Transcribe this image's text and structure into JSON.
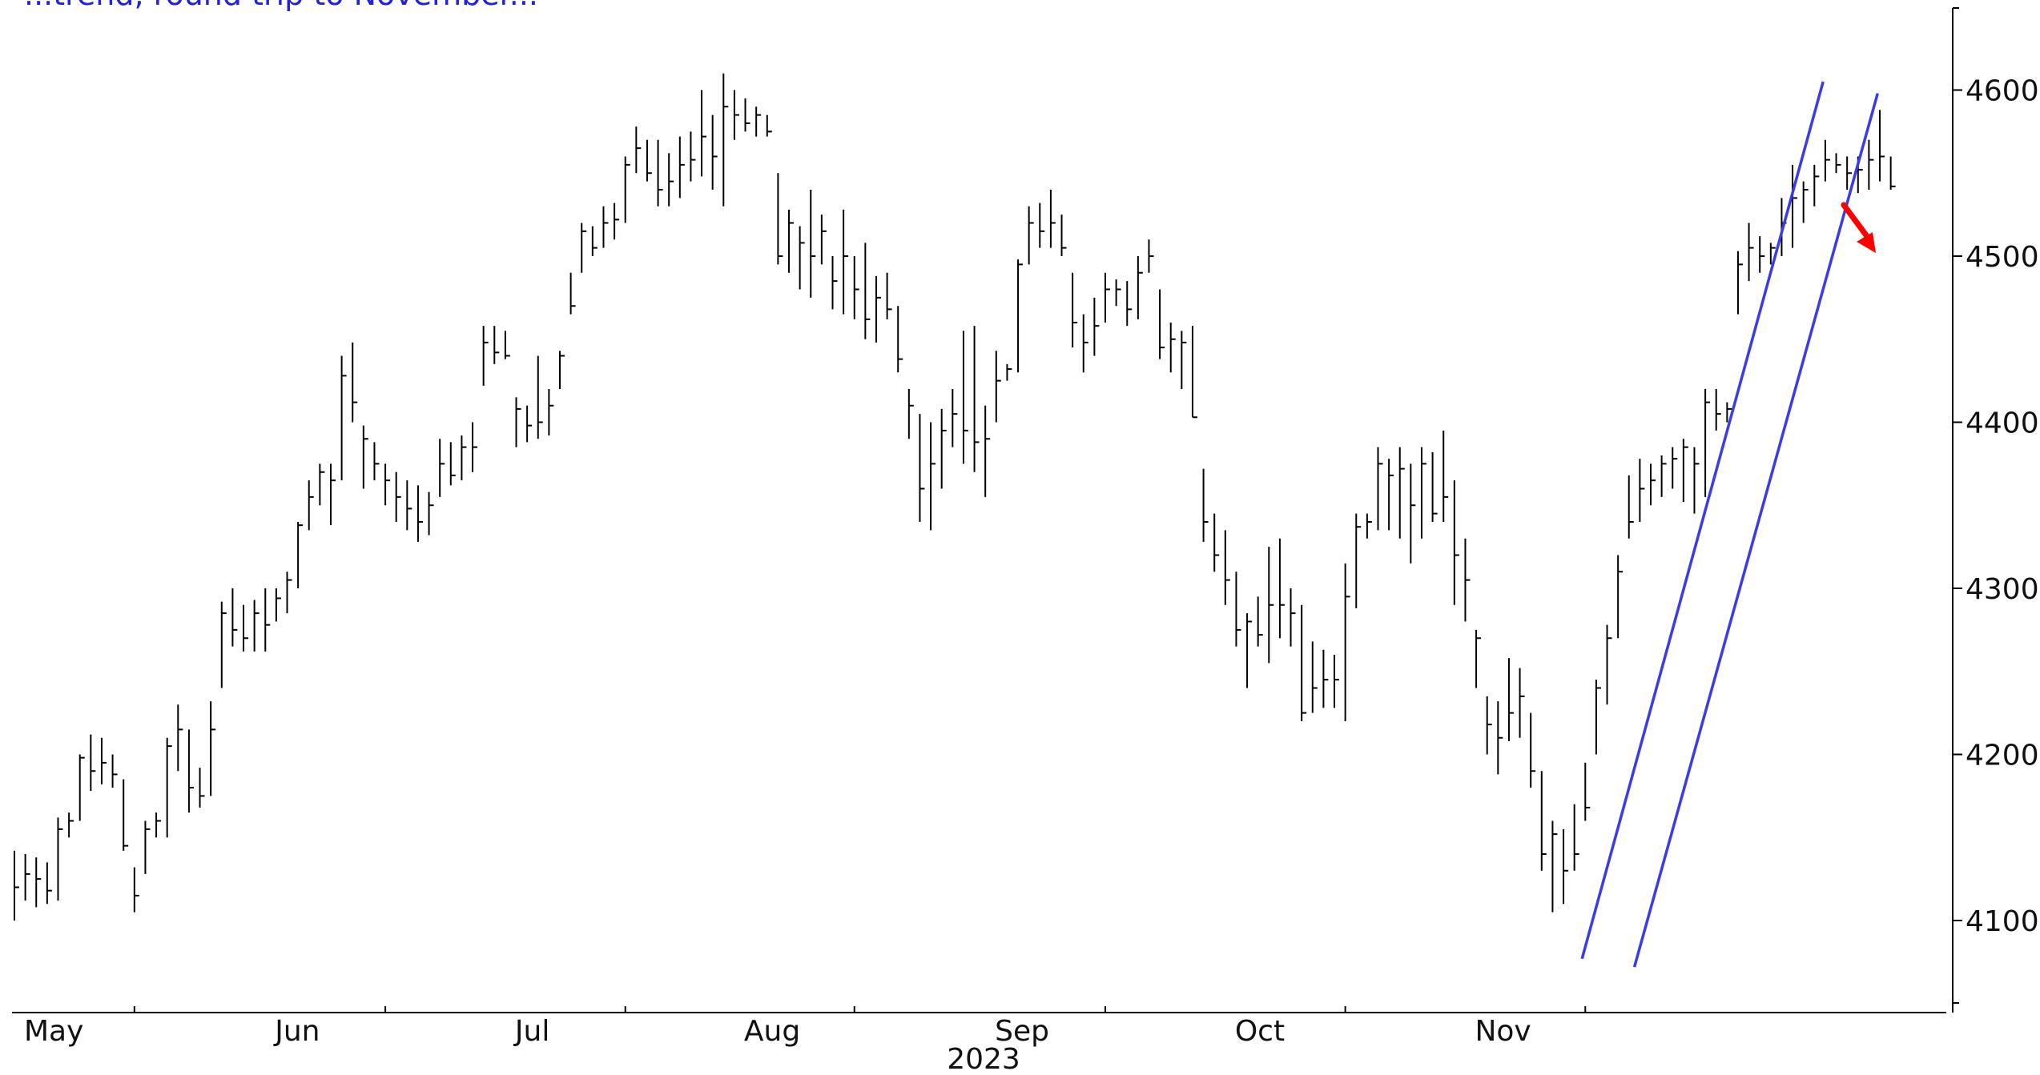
{
  "title_fragment": "...trend, round trip to November...",
  "colors": {
    "bars": "#000000",
    "channel": "#3b3bea",
    "arrow": "#ff0000",
    "title": "#2222dd"
  },
  "chart_data": {
    "type": "ohlc",
    "title": "",
    "xlabel": "2023",
    "ylabel": "",
    "ylim": [
      4050,
      4650
    ],
    "yticks": [
      4100,
      4200,
      4300,
      4400,
      4500,
      4600
    ],
    "y_axis_side": "right",
    "x_axis_months": [
      "May",
      "Jun",
      "Jul",
      "Aug",
      "Sep",
      "Oct",
      "Nov"
    ],
    "month_start_index": [
      0,
      23,
      45,
      66,
      89,
      111,
      133
    ],
    "grid": false,
    "bars": [
      [
        4142,
        4100,
        4120
      ],
      [
        4140,
        4112,
        4128
      ],
      [
        4138,
        4108,
        4125
      ],
      [
        4135,
        4110,
        4118
      ],
      [
        4162,
        4112,
        4155
      ],
      [
        4165,
        4150,
        4160
      ],
      [
        4200,
        4160,
        4198
      ],
      [
        4212,
        4178,
        4190
      ],
      [
        4210,
        4182,
        4195
      ],
      [
        4200,
        4180,
        4188
      ],
      [
        4185,
        4142,
        4145
      ],
      [
        4132,
        4105,
        4115
      ],
      [
        4160,
        4128,
        4155
      ],
      [
        4165,
        4150,
        4160
      ],
      [
        4210,
        4150,
        4205
      ],
      [
        4230,
        4190,
        4215
      ],
      [
        4215,
        4165,
        4180
      ],
      [
        4192,
        4168,
        4175
      ],
      [
        4232,
        4175,
        4215
      ],
      [
        4292,
        4240,
        4285
      ],
      [
        4300,
        4265,
        4275
      ],
      [
        4290,
        4262,
        4270
      ],
      [
        4293,
        4262,
        4285
      ],
      [
        4300,
        4262,
        4278
      ],
      [
        4300,
        4280,
        4294
      ],
      [
        4310,
        4285,
        4305
      ],
      [
        4340,
        4300,
        4338
      ],
      [
        4365,
        4335,
        4355
      ],
      [
        4375,
        4350,
        4370
      ],
      [
        4375,
        4338,
        4365
      ],
      [
        4440,
        4365,
        4428
      ],
      [
        4448,
        4400,
        4412
      ],
      [
        4398,
        4360,
        4390
      ],
      [
        4388,
        4365,
        4375
      ],
      [
        4375,
        4350,
        4365
      ],
      [
        4370,
        4340,
        4355
      ],
      [
        4365,
        4335,
        4348
      ],
      [
        4362,
        4328,
        4340
      ],
      [
        4358,
        4332,
        4350
      ],
      [
        4390,
        4355,
        4375
      ],
      [
        4388,
        4362,
        4368
      ],
      [
        4392,
        4365,
        4385
      ],
      [
        4400,
        4370,
        4385
      ],
      [
        4458,
        4422,
        4448
      ],
      [
        4458,
        4435,
        4442
      ],
      [
        4455,
        4438,
        4440
      ],
      [
        4415,
        4385,
        4408
      ],
      [
        4410,
        4388,
        4398
      ],
      [
        4440,
        4390,
        4400
      ],
      [
        4420,
        4392,
        4410
      ],
      [
        4443,
        4420,
        4440
      ],
      [
        4490,
        4465,
        4470
      ],
      [
        4520,
        4490,
        4515
      ],
      [
        4518,
        4500,
        4505
      ],
      [
        4530,
        4505,
        4520
      ],
      [
        4532,
        4510,
        4522
      ],
      [
        4560,
        4520,
        4555
      ],
      [
        4578,
        4550,
        4565
      ],
      [
        4570,
        4545,
        4550
      ],
      [
        4570,
        4530,
        4540
      ],
      [
        4562,
        4530,
        4545
      ],
      [
        4572,
        4535,
        4555
      ],
      [
        4575,
        4545,
        4558
      ],
      [
        4600,
        4548,
        4572
      ],
      [
        4585,
        4540,
        4560
      ],
      [
        4610,
        4530,
        4590
      ],
      [
        4600,
        4570,
        4585
      ],
      [
        4595,
        4575,
        4580
      ],
      [
        4590,
        4572,
        4585
      ],
      [
        4585,
        4572,
        4575
      ],
      [
        4550,
        4495,
        4500
      ],
      [
        4528,
        4490,
        4520
      ],
      [
        4518,
        4480,
        4508
      ],
      [
        4540,
        4475,
        4500
      ],
      [
        4525,
        4495,
        4515
      ],
      [
        4500,
        4468,
        4485
      ],
      [
        4528,
        4465,
        4500
      ],
      [
        4500,
        4462,
        4480
      ],
      [
        4508,
        4450,
        4462
      ],
      [
        4488,
        4448,
        4475
      ],
      [
        4490,
        4462,
        4468
      ],
      [
        4470,
        4430,
        4438
      ],
      [
        4420,
        4390,
        4410
      ],
      [
        4405,
        4340,
        4360
      ],
      [
        4400,
        4335,
        4375
      ],
      [
        4408,
        4360,
        4395
      ],
      [
        4420,
        4385,
        4405
      ],
      [
        4455,
        4375,
        4395
      ],
      [
        4458,
        4370,
        4388
      ],
      [
        4410,
        4355,
        4390
      ],
      [
        4443,
        4400,
        4425
      ],
      [
        4435,
        4425,
        4432
      ],
      [
        4498,
        4430,
        4495
      ],
      [
        4530,
        4495,
        4520
      ],
      [
        4532,
        4505,
        4515
      ],
      [
        4540,
        4505,
        4520
      ],
      [
        4525,
        4500,
        4505
      ],
      [
        4490,
        4445,
        4460
      ],
      [
        4465,
        4430,
        4448
      ],
      [
        4475,
        4440,
        4458
      ],
      [
        4490,
        4460,
        4480
      ],
      [
        4486,
        4470,
        4480
      ],
      [
        4485,
        4458,
        4468
      ],
      [
        4500,
        4462,
        4490
      ],
      [
        4510,
        4490,
        4500
      ],
      [
        4480,
        4438,
        4445
      ],
      [
        4460,
        4430,
        4450
      ],
      [
        4455,
        4420,
        4448
      ],
      [
        4458,
        4403,
        4403
      ],
      [
        4372,
        4328,
        4340
      ],
      [
        4345,
        4310,
        4320
      ],
      [
        4335,
        4290,
        4305
      ],
      [
        4310,
        4265,
        4275
      ],
      [
        4285,
        4240,
        4280
      ],
      [
        4295,
        4265,
        4272
      ],
      [
        4325,
        4255,
        4290
      ],
      [
        4330,
        4270,
        4290
      ],
      [
        4300,
        4265,
        4285
      ],
      [
        4290,
        4220,
        4225
      ],
      [
        4268,
        4225,
        4240
      ],
      [
        4263,
        4228,
        4245
      ],
      [
        4260,
        4228,
        4245
      ],
      [
        4315,
        4220,
        4295
      ],
      [
        4345,
        4288,
        4337
      ],
      [
        4345,
        4330,
        4340
      ],
      [
        4385,
        4335,
        4375
      ],
      [
        4378,
        4335,
        4368
      ],
      [
        4385,
        4330,
        4372
      ],
      [
        4375,
        4315,
        4350
      ],
      [
        4385,
        4330,
        4375
      ],
      [
        4382,
        4340,
        4345
      ],
      [
        4395,
        4340,
        4355
      ],
      [
        4365,
        4290,
        4320
      ],
      [
        4330,
        4280,
        4305
      ],
      [
        4275,
        4240,
        4270
      ],
      [
        4235,
        4200,
        4218
      ],
      [
        4232,
        4188,
        4210
      ],
      [
        4258,
        4208,
        4225
      ],
      [
        4252,
        4210,
        4235
      ],
      [
        4225,
        4180,
        4190
      ],
      [
        4190,
        4130,
        4140
      ],
      [
        4160,
        4105,
        4152
      ],
      [
        4155,
        4110,
        4130
      ],
      [
        4170,
        4130,
        4140
      ],
      [
        4195,
        4160,
        4168
      ],
      [
        4245,
        4200,
        4240
      ],
      [
        4278,
        4230,
        4270
      ],
      [
        4320,
        4270,
        4310
      ],
      [
        4368,
        4330,
        4340
      ],
      [
        4378,
        4340,
        4360
      ],
      [
        4375,
        4350,
        4365
      ],
      [
        4380,
        4355,
        4375
      ],
      [
        4385,
        4360,
        4378
      ],
      [
        4390,
        4352,
        4385
      ],
      [
        4385,
        4345,
        4375
      ],
      [
        4420,
        4355,
        4412
      ],
      [
        4420,
        4395,
        4405
      ],
      [
        4412,
        4400,
        4408
      ],
      [
        4503,
        4465,
        4495
      ],
      [
        4520,
        4485,
        4505
      ],
      [
        4512,
        4490,
        4500
      ],
      [
        4508,
        4495,
        4505
      ],
      [
        4535,
        4500,
        4520
      ],
      [
        4555,
        4505,
        4535
      ],
      [
        4545,
        4520,
        4540
      ],
      [
        4555,
        4530,
        4548
      ],
      [
        4570,
        4545,
        4558
      ],
      [
        4562,
        4550,
        4555
      ],
      [
        4560,
        4540,
        4550
      ],
      [
        4560,
        4538,
        4552
      ],
      [
        4570,
        4540,
        4558
      ],
      [
        4588,
        4545,
        4560
      ],
      [
        4560,
        4540,
        4542
      ]
    ],
    "channel_lines": [
      {
        "name": "",
        "from": {
          "index": 143.7,
          "value": 4077
        },
        "to": {
          "index": 165.8,
          "value": 4605
        }
      },
      {
        "name": "",
        "from": {
          "index": 148.5,
          "value": 4072
        },
        "to": {
          "index": 170.8,
          "value": 4598
        }
      }
    ],
    "annotations": [
      {
        "type": "arrow",
        "direction": "down-right",
        "color": "#ff0000"
      }
    ]
  }
}
